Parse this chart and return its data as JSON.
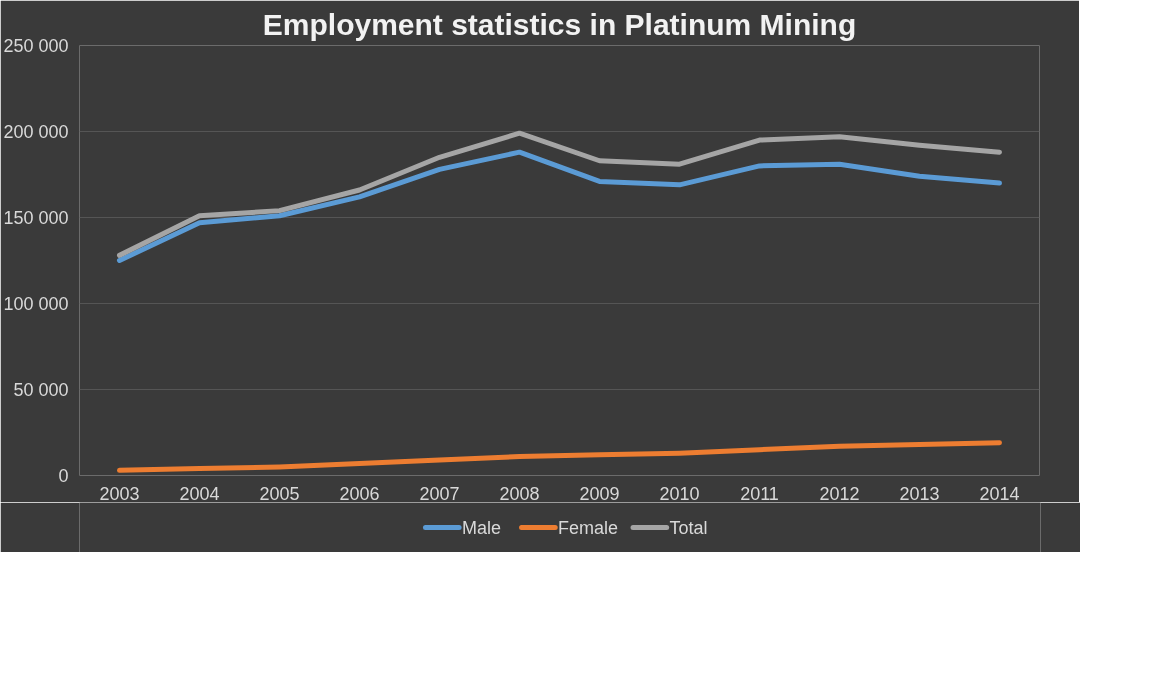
{
  "chart_data": {
    "type": "line",
    "title": "Employment statistics in Platinum Mining",
    "categories": [
      "2003",
      "2004",
      "2005",
      "2006",
      "2007",
      "2008",
      "2009",
      "2010",
      "2011",
      "2012",
      "2013",
      "2014"
    ],
    "series": [
      {
        "name": "Male",
        "color": "#5b9bd5",
        "values": [
          125000,
          147000,
          151000,
          162000,
          178000,
          188000,
          171000,
          169000,
          180000,
          181000,
          174000,
          170000
        ]
      },
      {
        "name": "Female",
        "color": "#ed7d31",
        "values": [
          3000,
          4000,
          5000,
          7000,
          9000,
          11000,
          12000,
          13000,
          15000,
          17000,
          18000,
          19000
        ]
      },
      {
        "name": "Total",
        "color": "#a5a5a5",
        "values": [
          128000,
          151000,
          154000,
          166000,
          185000,
          199000,
          183000,
          181000,
          195000,
          197000,
          192000,
          188000
        ]
      }
    ],
    "ylim": [
      0,
      250000
    ],
    "yticks": [
      {
        "value": 0,
        "label": "0"
      },
      {
        "value": 50000,
        "label": "50 000"
      },
      {
        "value": 100000,
        "label": "100 000"
      },
      {
        "value": 150000,
        "label": "150 000"
      },
      {
        "value": 200000,
        "label": "200 000"
      },
      {
        "value": 250000,
        "label": "250 000"
      }
    ],
    "grid": "y",
    "legend": "bottom",
    "marker": "none",
    "line_style": "solid"
  }
}
